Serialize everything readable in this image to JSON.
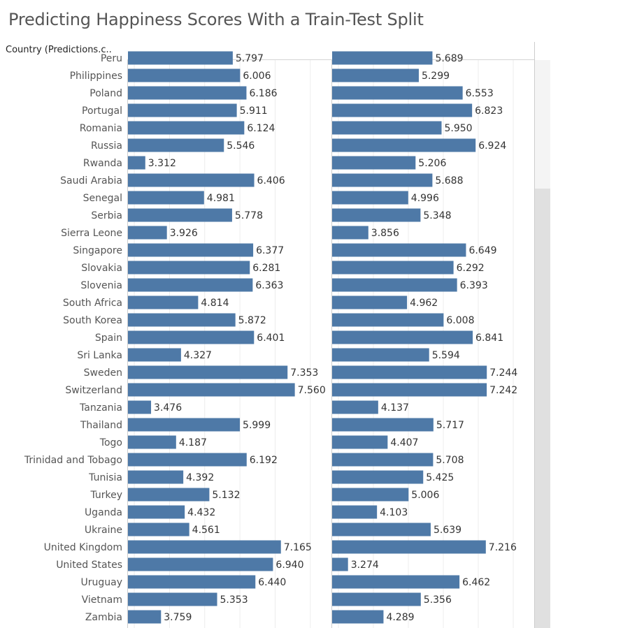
{
  "header": {
    "title": "Predicting Happiness Scores With a Train-Test Split",
    "row_header_label": "Country (Predictions.c.."
  },
  "colors": {
    "bar": "#4e79a7",
    "label_text": "#333333",
    "row_label_text": "#555555",
    "gridline": "#ececec",
    "axis_line": "#cfcfcf"
  },
  "chart_data": [
    {
      "type": "bar",
      "orientation": "horizontal",
      "categories": [
        "Peru",
        "Philippines",
        "Poland",
        "Portugal",
        "Romania",
        "Russia",
        "Rwanda",
        "Saudi Arabia",
        "Senegal",
        "Serbia",
        "Sierra Leone",
        "Singapore",
        "Slovakia",
        "Slovenia",
        "South Africa",
        "South Korea",
        "Spain",
        "Sri Lanka",
        "Sweden",
        "Switzerland",
        "Tanzania",
        "Thailand",
        "Togo",
        "Trinidad and Tobago",
        "Tunisia",
        "Turkey",
        "Uganda",
        "Ukraine",
        "United Kingdom",
        "United States",
        "Uruguay",
        "Vietnam",
        "Zambia"
      ],
      "values": [
        5.797,
        6.006,
        6.186,
        5.911,
        6.124,
        5.546,
        3.312,
        6.406,
        4.981,
        5.778,
        3.926,
        6.377,
        6.281,
        6.363,
        4.814,
        5.872,
        6.401,
        4.327,
        7.353,
        7.56,
        3.476,
        5.999,
        4.187,
        6.192,
        4.392,
        5.132,
        4.432,
        4.561,
        7.165,
        6.94,
        6.44,
        5.353,
        3.759
      ],
      "value_labels": [
        "5.797",
        "6.006",
        "6.186",
        "5.911",
        "6.124",
        "5.546",
        "3.312",
        "6.406",
        "4.981",
        "5.778",
        "3.926",
        "6.377",
        "6.281",
        "6.363",
        "4.814",
        "5.872",
        "6.401",
        "4.327",
        "7.353",
        "7.560",
        "3.476",
        "5.999",
        "4.187",
        "6.192",
        "4.392",
        "5.132",
        "4.432",
        "4.561",
        "7.165",
        "6.940",
        "6.440",
        "5.353",
        "3.759"
      ],
      "xlim": [
        2.8,
        8.6
      ],
      "grid": true
    },
    {
      "type": "bar",
      "orientation": "horizontal",
      "categories": [
        "Peru",
        "Philippines",
        "Poland",
        "Portugal",
        "Romania",
        "Russia",
        "Rwanda",
        "Saudi Arabia",
        "Senegal",
        "Serbia",
        "Sierra Leone",
        "Singapore",
        "Slovakia",
        "Slovenia",
        "South Africa",
        "South Korea",
        "Spain",
        "Sri Lanka",
        "Sweden",
        "Switzerland",
        "Tanzania",
        "Thailand",
        "Togo",
        "Trinidad and Tobago",
        "Tunisia",
        "Turkey",
        "Uganda",
        "Ukraine",
        "United Kingdom",
        "United States",
        "Uruguay",
        "Vietnam",
        "Zambia"
      ],
      "values": [
        5.689,
        5.299,
        6.553,
        6.823,
        5.95,
        6.924,
        5.206,
        5.688,
        4.996,
        5.348,
        3.856,
        6.649,
        6.292,
        6.393,
        4.962,
        6.008,
        6.841,
        5.594,
        7.244,
        7.242,
        4.137,
        5.717,
        4.407,
        5.708,
        5.425,
        5.006,
        4.103,
        5.639,
        7.216,
        3.274,
        6.462,
        5.356,
        4.289
      ],
      "value_labels": [
        "5.689",
        "5.299",
        "6.553",
        "6.823",
        "5.950",
        "6.924",
        "5.206",
        "5.688",
        "4.996",
        "5.348",
        "3.856",
        "6.649",
        "6.292",
        "6.393",
        "4.962",
        "6.008",
        "6.841",
        "5.594",
        "7.244",
        "7.242",
        "4.137",
        "5.717",
        "4.407",
        "5.708",
        "5.425",
        "5.006",
        "4.103",
        "5.639",
        "7.216",
        "3.274",
        "6.462",
        "5.356",
        "4.289"
      ],
      "xlim": [
        2.8,
        8.6
      ],
      "grid": true
    }
  ]
}
